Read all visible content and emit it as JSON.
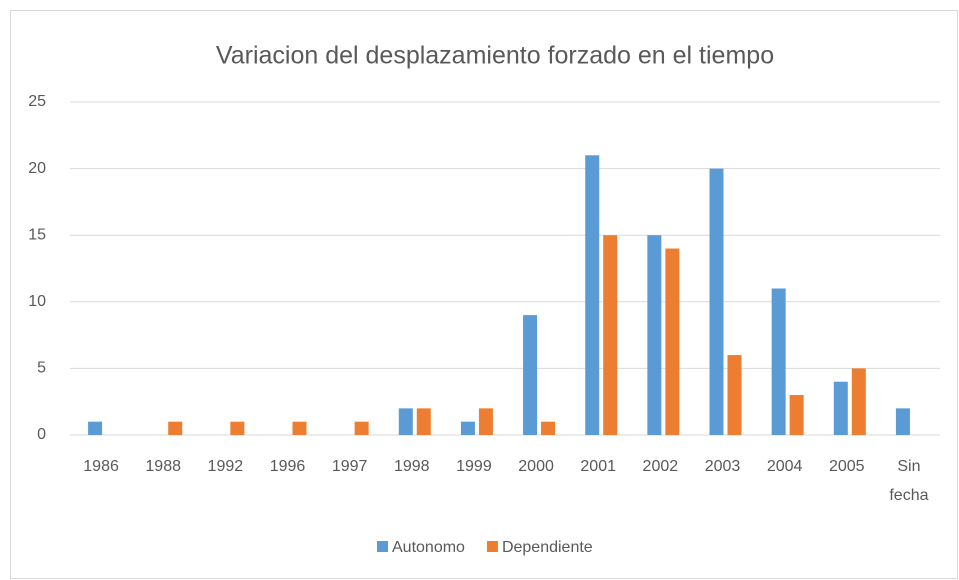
{
  "chart_data": {
    "type": "bar",
    "title": "Variacion del desplazamiento forzado en el tiempo",
    "categories": [
      "1986",
      "1988",
      "1992",
      "1996",
      "1997",
      "1998",
      "1999",
      "2000",
      "2001",
      "2002",
      "2003",
      "2004",
      "2005",
      "Sin fecha"
    ],
    "series": [
      {
        "name": "Autonomo",
        "color": "#5b9bd5",
        "values": [
          1,
          0,
          0,
          0,
          0,
          2,
          1,
          9,
          21,
          15,
          20,
          11,
          4,
          2
        ]
      },
      {
        "name": "Dependiente",
        "color": "#ed7d31",
        "values": [
          0,
          1,
          1,
          1,
          1,
          2,
          2,
          1,
          15,
          14,
          6,
          3,
          5,
          0
        ]
      }
    ],
    "ylim": [
      0,
      25
    ],
    "yticks": [
      0,
      5,
      10,
      15,
      20,
      25
    ],
    "grid": true,
    "legend": "bottom"
  }
}
